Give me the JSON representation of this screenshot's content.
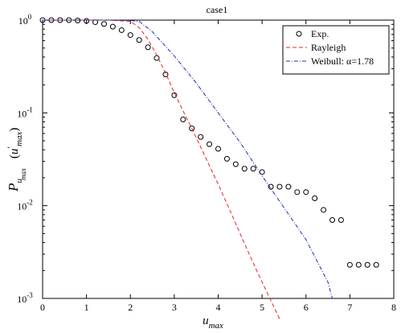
{
  "chart_data": {
    "type": "scatter",
    "title": "case1",
    "xlabel": "u",
    "xlabel_sub": "max",
    "ylabel_main": "P",
    "ylabel_sub1": "u",
    "ylabel_sub2": "max",
    "ylabel_paren_open": "(",
    "ylabel_arg": "u",
    "ylabel_prime": "′",
    "ylabel_arg_sub": "max",
    "ylabel_paren_close": ")",
    "xlim": [
      0,
      8
    ],
    "ylim": [
      0.001,
      1
    ],
    "yscale": "log",
    "xticks": [
      0,
      1,
      2,
      3,
      4,
      5,
      6,
      7,
      8
    ],
    "xtick_labels": [
      "0",
      "1",
      "2",
      "3",
      "4",
      "5",
      "6",
      "7",
      "8"
    ],
    "yticks": [
      0.001,
      0.01,
      0.1,
      1
    ],
    "ytick_labels": [
      {
        "base": "10",
        "exp": "-3"
      },
      {
        "base": "10",
        "exp": "-2"
      },
      {
        "base": "10",
        "exp": "-1"
      },
      {
        "base": "10",
        "exp": "0"
      }
    ],
    "grid": false,
    "legend_position": "top-right",
    "series": [
      {
        "name": "Exp.",
        "kind": "markers",
        "marker": "circle",
        "color": "#000000",
        "x": [
          0.0,
          0.2,
          0.4,
          0.6,
          0.8,
          1.0,
          1.2,
          1.4,
          1.6,
          1.8,
          2.0,
          2.2,
          2.4,
          2.6,
          2.8,
          3.0,
          3.2,
          3.4,
          3.6,
          3.8,
          4.0,
          4.2,
          4.4,
          4.6,
          4.8,
          5.0,
          5.2,
          5.4,
          5.6,
          5.8,
          6.0,
          6.2,
          6.4,
          6.6,
          6.8,
          7.0,
          7.2,
          7.4,
          7.6
        ],
        "y": [
          1.0,
          1.0,
          1.0,
          1.0,
          0.99,
          0.98,
          0.95,
          0.91,
          0.85,
          0.78,
          0.69,
          0.61,
          0.51,
          0.39,
          0.26,
          0.155,
          0.085,
          0.068,
          0.055,
          0.046,
          0.041,
          0.032,
          0.028,
          0.025,
          0.025,
          0.023,
          0.016,
          0.016,
          0.016,
          0.014,
          0.014,
          0.012,
          0.009,
          0.007,
          0.007,
          0.0023,
          0.0023,
          0.0023,
          0.0023
        ]
      },
      {
        "name": "Rayleigh",
        "kind": "line",
        "dash": "dashed",
        "color": "#e8252b",
        "x": [
          0.0,
          0.5,
          1.0,
          1.5,
          2.0,
          2.2,
          2.4,
          2.6,
          2.8,
          3.0,
          3.2,
          3.4,
          3.6,
          3.8,
          4.0,
          4.2,
          4.4,
          4.6,
          4.8,
          5.0,
          5.2,
          5.4
        ],
        "y": [
          1.0,
          1.0,
          1.0,
          1.0,
          0.97,
          0.83,
          0.62,
          0.42,
          0.27,
          0.165,
          0.105,
          0.068,
          0.043,
          0.027,
          0.017,
          0.0105,
          0.0064,
          0.0039,
          0.0024,
          0.0015,
          0.00095,
          0.0006
        ]
      },
      {
        "name": "Weibull: α=1.78",
        "kind": "line",
        "dash": "dashdot",
        "color": "#1f2bb8",
        "x": [
          0.0,
          0.5,
          1.0,
          1.5,
          2.0,
          2.2,
          2.5,
          3.0,
          3.5,
          4.0,
          4.5,
          5.0,
          5.5,
          6.0,
          6.5,
          6.6
        ],
        "y": [
          1.0,
          1.0,
          1.0,
          1.0,
          0.99,
          0.97,
          0.75,
          0.41,
          0.21,
          0.1,
          0.048,
          0.021,
          0.0095,
          0.0043,
          0.0015,
          0.001
        ]
      }
    ]
  }
}
